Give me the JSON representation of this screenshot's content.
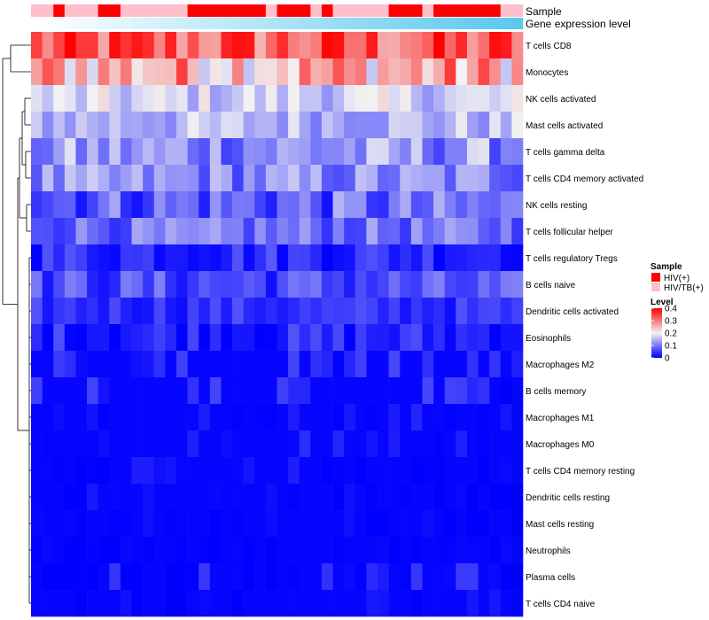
{
  "chart_data": {
    "type": "heatmap",
    "n_samples": 44,
    "annotations": [
      {
        "name": "Sample",
        "label": "Sample"
      },
      {
        "name": "Gene expression level",
        "label": "Gene expression level"
      }
    ],
    "sample_groups": [
      "TB",
      "TB",
      "HIV",
      "TB",
      "TB",
      "TB",
      "HIV",
      "HIV",
      "TB",
      "TB",
      "TB",
      "TB",
      "TB",
      "TB",
      "HIV",
      "HIV",
      "HIV",
      "HIV",
      "HIV",
      "HIV",
      "HIV",
      "TB",
      "HIV",
      "HIV",
      "HIV",
      "TB",
      "HIV",
      "TB",
      "TB",
      "TB",
      "TB",
      "TB",
      "HIV",
      "HIV",
      "HIV",
      "TB",
      "HIV",
      "HIV",
      "HIV",
      "HIV",
      "HIV",
      "HIV",
      "TB",
      "TB"
    ],
    "expression_gradient": [
      "#ffffff",
      "#5bc8ee"
    ],
    "rows": [
      "T cells CD8",
      "Monocytes",
      "NK cells activated",
      "Mast cells activated",
      "T cells gamma delta",
      "T cells CD4 memory activated",
      "NK cells resting",
      "T cells follicular helper",
      "T cells regulatory  Tregs",
      "B cells naive",
      "Dendritic cells activated",
      "Eosinophils",
      "Macrophages M2",
      "B cells memory",
      "Macrophages M1",
      "Macrophages M0",
      "T cells CD4 memory resting",
      "Dendritic cells resting",
      "Mast cells resting",
      "Neutrophils",
      "Plasma cells",
      "T cells CD4 naive"
    ],
    "row_base_levels": [
      0.32,
      0.26,
      0.17,
      0.15,
      0.12,
      0.11,
      0.08,
      0.09,
      0.04,
      0.06,
      0.04,
      0.03,
      0.03,
      0.03,
      0.02,
      0.02,
      0.01,
      0.01,
      0.005,
      0.003,
      0.02,
      0.01
    ],
    "row_variation": [
      0.09,
      0.1,
      0.05,
      0.05,
      0.07,
      0.06,
      0.07,
      0.05,
      0.04,
      0.05,
      0.03,
      0.04,
      0.03,
      0.03,
      0.02,
      0.02,
      0.015,
      0.012,
      0.008,
      0.005,
      0.03,
      0.015
    ],
    "legend": {
      "sample": {
        "title": "Sample",
        "items": [
          {
            "key": "HIV",
            "label": "HIV(+)",
            "color": "#ff0000"
          },
          {
            "key": "TB",
            "label": "HIV/TB(+)",
            "color": "#ffc0cb"
          }
        ]
      },
      "level": {
        "title": "Level",
        "ticks": [
          0.4,
          0.3,
          0.2,
          0.1,
          0
        ],
        "tick_labels": [
          "0.4",
          "0.3",
          "0.2",
          "0.1",
          "0"
        ],
        "range": [
          0,
          0.4
        ]
      }
    },
    "colors": {
      "low": "#0000ff",
      "mid": "#f2f2f2",
      "high": "#ff0000",
      "line": "#000000"
    }
  }
}
